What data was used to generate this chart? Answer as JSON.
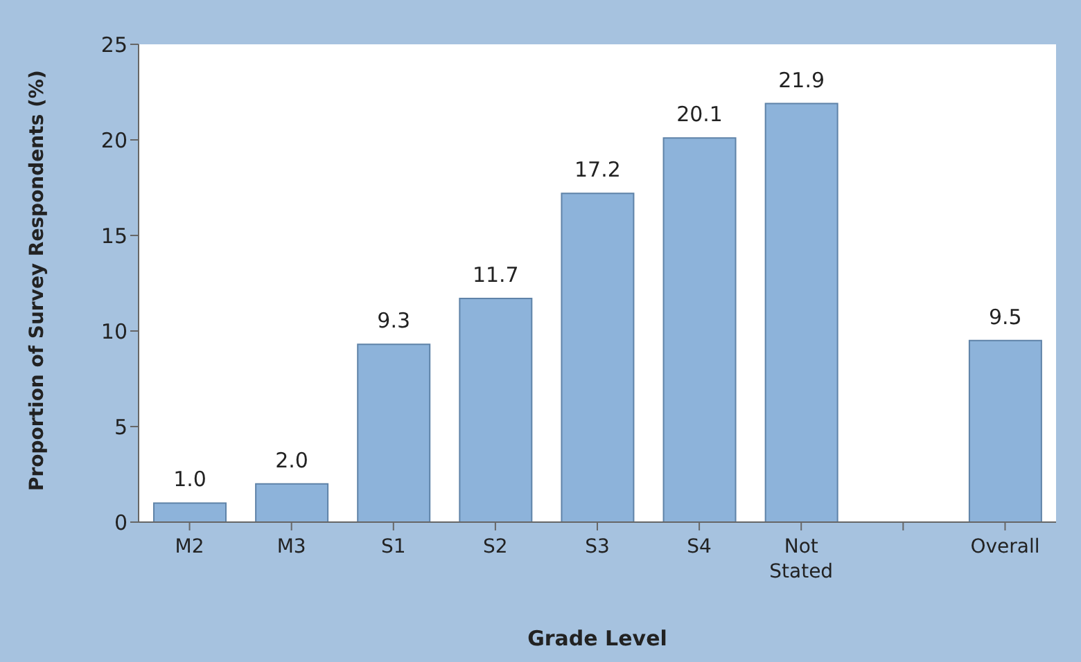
{
  "chart_data": {
    "type": "bar",
    "xlabel": "Grade Level",
    "ylabel": "Proportion of Survey Respondents (%)",
    "categories": [
      "M2",
      "M3",
      "S1",
      "S2",
      "S3",
      "S4",
      "Not Stated",
      null,
      "Overall"
    ],
    "values": [
      1.0,
      2.0,
      9.3,
      11.7,
      17.2,
      20.1,
      21.9,
      null,
      9.5
    ],
    "value_labels": [
      "1.0",
      "2.0",
      "9.3",
      "11.7",
      "17.2",
      "20.1",
      "21.9",
      null,
      "9.5"
    ],
    "color": "#8db3da",
    "ylim": [
      0,
      25
    ],
    "yticks": [
      0,
      5,
      10,
      15,
      20,
      25
    ],
    "grid": false,
    "legend": false
  }
}
